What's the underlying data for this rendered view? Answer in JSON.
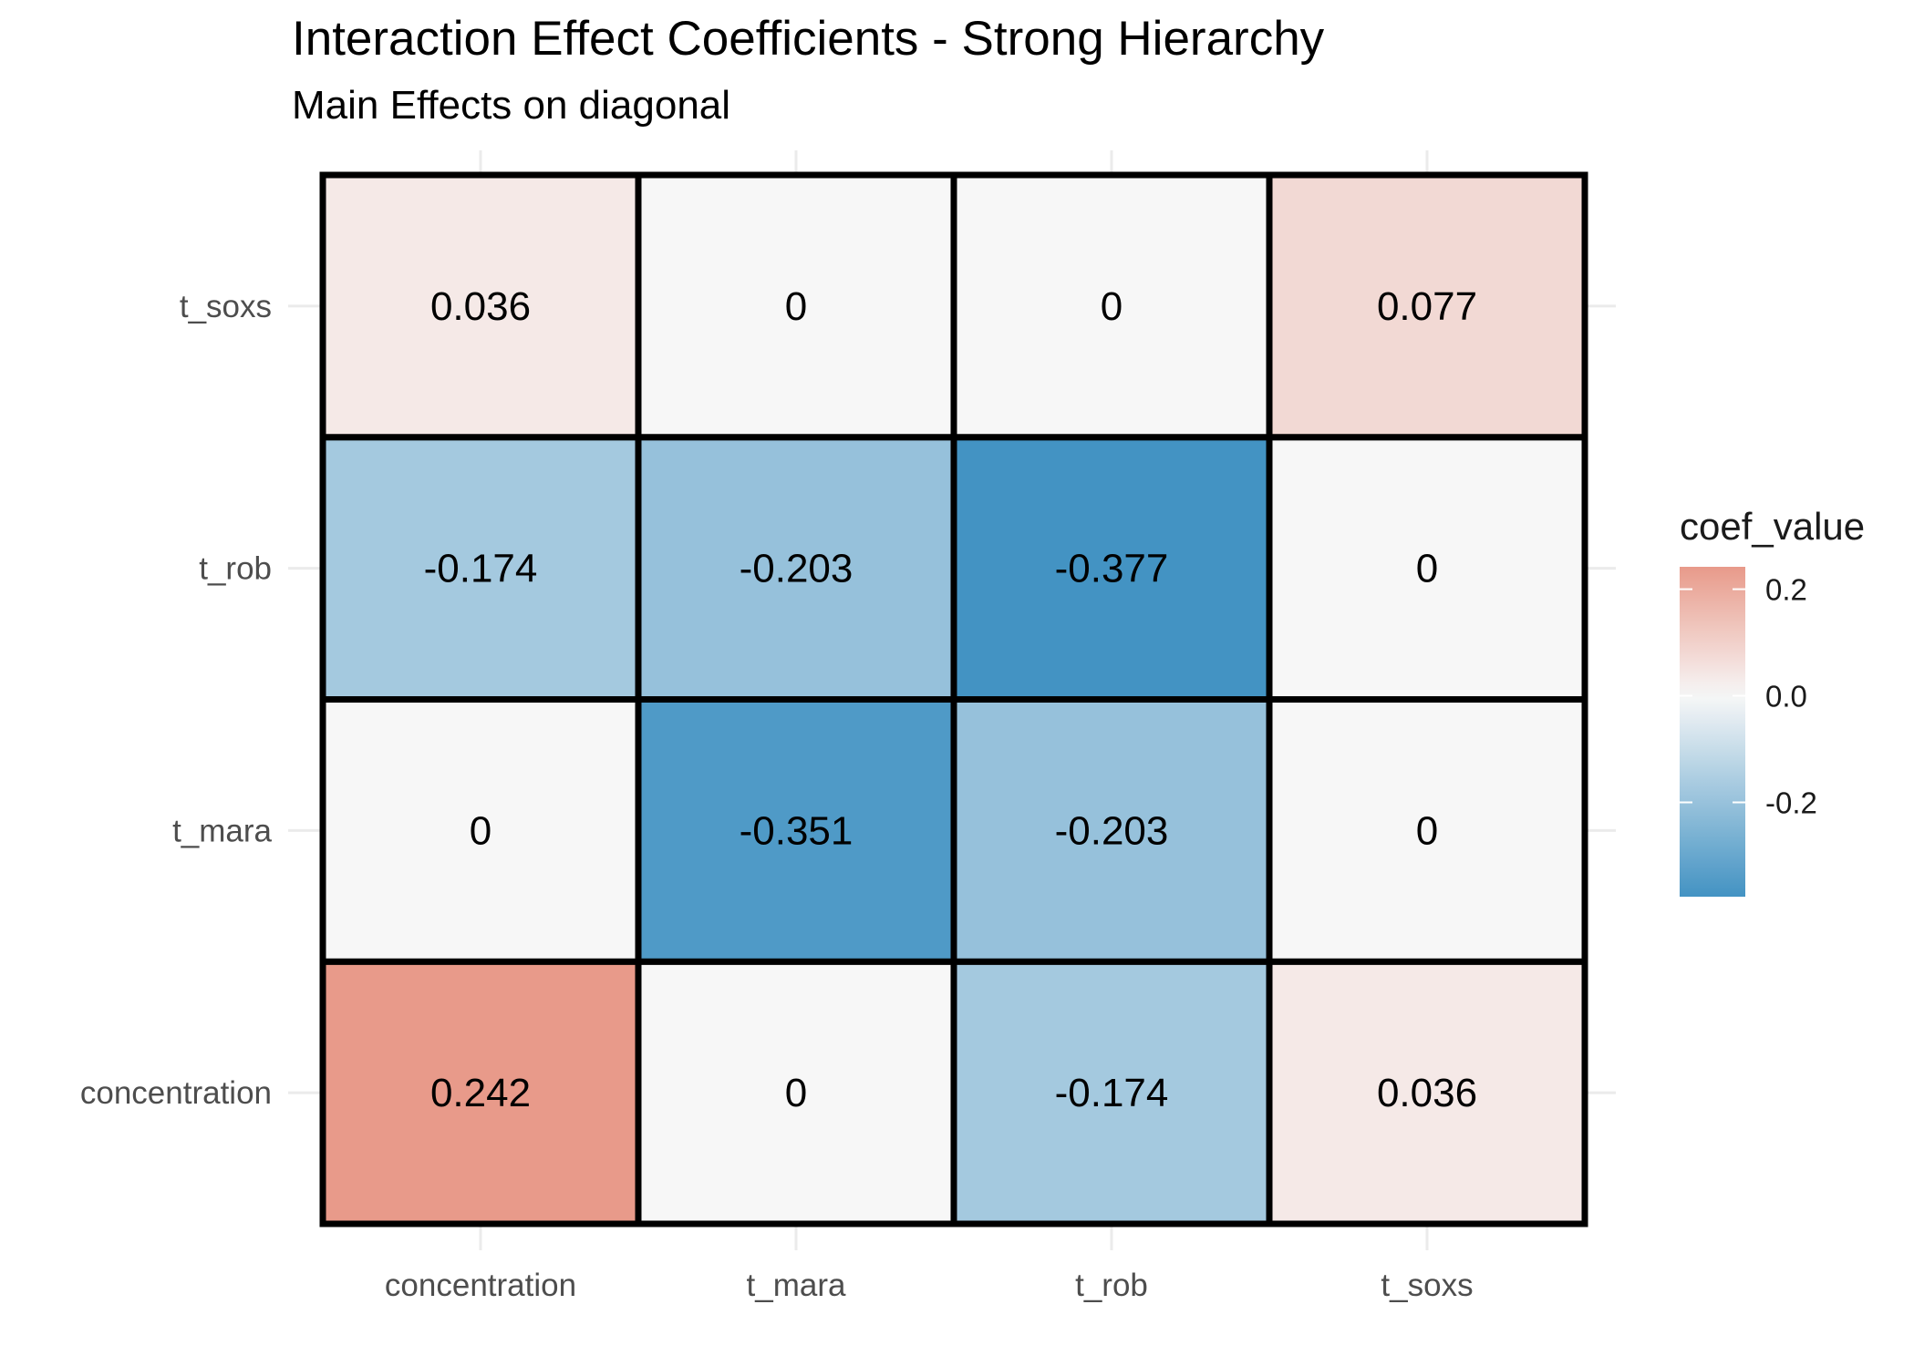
{
  "chart_data": {
    "type": "heatmap",
    "title": "Interaction Effect Coefficients - Strong Hierarchy",
    "subtitle": "Main Effects on diagonal",
    "x_categories": [
      "concentration",
      "t_mara",
      "t_rob",
      "t_soxs"
    ],
    "y_categories": [
      "concentration",
      "t_mara",
      "t_rob",
      "t_soxs"
    ],
    "cells": [
      {
        "x": "concentration",
        "y": "concentration",
        "value": 0.242,
        "label": "0.242"
      },
      {
        "x": "t_mara",
        "y": "concentration",
        "value": 0,
        "label": "0"
      },
      {
        "x": "t_rob",
        "y": "concentration",
        "value": -0.174,
        "label": "-0.174"
      },
      {
        "x": "t_soxs",
        "y": "concentration",
        "value": 0.036,
        "label": "0.036"
      },
      {
        "x": "concentration",
        "y": "t_mara",
        "value": 0,
        "label": "0"
      },
      {
        "x": "t_mara",
        "y": "t_mara",
        "value": -0.351,
        "label": "-0.351"
      },
      {
        "x": "t_rob",
        "y": "t_mara",
        "value": -0.203,
        "label": "-0.203"
      },
      {
        "x": "t_soxs",
        "y": "t_mara",
        "value": 0,
        "label": "0"
      },
      {
        "x": "concentration",
        "y": "t_rob",
        "value": -0.174,
        "label": "-0.174"
      },
      {
        "x": "t_mara",
        "y": "t_rob",
        "value": -0.203,
        "label": "-0.203"
      },
      {
        "x": "t_rob",
        "y": "t_rob",
        "value": -0.377,
        "label": "-0.377"
      },
      {
        "x": "t_soxs",
        "y": "t_rob",
        "value": 0,
        "label": "0"
      },
      {
        "x": "concentration",
        "y": "t_soxs",
        "value": 0.036,
        "label": "0.036"
      },
      {
        "x": "t_mara",
        "y": "t_soxs",
        "value": 0,
        "label": "0"
      },
      {
        "x": "t_rob",
        "y": "t_soxs",
        "value": 0,
        "label": "0"
      },
      {
        "x": "t_soxs",
        "y": "t_soxs",
        "value": 0.077,
        "label": "0.077"
      }
    ],
    "legend": {
      "title": "coef_value",
      "breaks": [
        0.2,
        0.0,
        -0.2
      ],
      "break_labels": [
        "0.2",
        "0.0",
        "-0.2"
      ],
      "range": [
        -0.377,
        0.242
      ],
      "colors": {
        "low": "#4393c3",
        "mid": "#f7f7f7",
        "high": "#e89a8a"
      },
      "placement": "right"
    },
    "grid": true
  }
}
